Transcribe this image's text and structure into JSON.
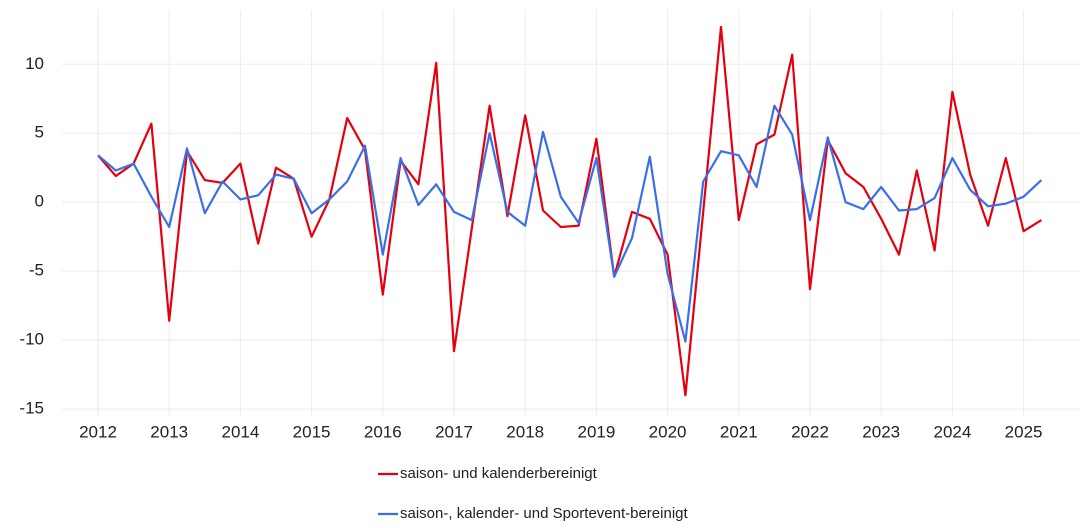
{
  "chart_data": {
    "type": "line",
    "categories": [
      "2012",
      null,
      null,
      null,
      "2013",
      null,
      null,
      null,
      "2014",
      null,
      null,
      null,
      "2015",
      null,
      null,
      null,
      "2016",
      null,
      null,
      null,
      "2017",
      null,
      null,
      null,
      "2018",
      null,
      null,
      null,
      "2019",
      null,
      null,
      null,
      "2020",
      null,
      null,
      null,
      "2021",
      null,
      null,
      null,
      "2022",
      null,
      null,
      null,
      "2023",
      null,
      null,
      null,
      "2024",
      null,
      null,
      null,
      "2025",
      null
    ],
    "series": [
      {
        "name": "saison- und kalenderbereinigt",
        "color": "#e3000f",
        "values": [
          3.4,
          1.9,
          2.8,
          5.7,
          -8.6,
          3.7,
          1.6,
          1.4,
          2.8,
          -3.0,
          2.5,
          1.7,
          -2.5,
          0.2,
          6.1,
          3.8,
          -6.7,
          3.0,
          1.3,
          10.1,
          -10.8,
          -1.9,
          7.0,
          -1.0,
          6.3,
          -0.6,
          -1.8,
          -1.7,
          4.6,
          -5.4,
          -0.7,
          -1.2,
          -3.8,
          -14.0,
          -0.7,
          12.7,
          -1.3,
          4.2,
          4.9,
          10.7,
          -6.3,
          4.5,
          2.1,
          1.1,
          -1.2,
          -3.8,
          2.3,
          -3.5,
          8.0,
          2.0,
          -1.7,
          3.2,
          -2.1,
          -1.3
        ]
      },
      {
        "name": "saison-, kalender- und Sportevent-bereinigt",
        "color": "#3b6fe8",
        "values": [
          3.4,
          2.3,
          2.8,
          0.4,
          -1.8,
          3.9,
          -0.8,
          1.5,
          0.2,
          0.5,
          2.0,
          1.7,
          -0.8,
          0.2,
          1.5,
          4.1,
          -3.8,
          3.2,
          -0.2,
          1.3,
          -0.7,
          -1.3,
          5.0,
          -0.7,
          -1.7,
          5.1,
          0.4,
          -1.5,
          3.2,
          -5.4,
          -2.6,
          3.3,
          -5.2,
          -10.1,
          1.5,
          3.7,
          3.4,
          1.1,
          7.0,
          4.9,
          -1.3,
          4.7,
          0.0,
          -0.5,
          1.1,
          -0.6,
          -0.5,
          0.3,
          3.2,
          0.9,
          -0.3,
          -0.1,
          0.4,
          1.6
        ]
      }
    ],
    "ylim": [
      -15.5,
      13.5
    ],
    "yticks": [
      -15,
      -10,
      -5,
      0,
      5,
      10
    ],
    "grid": true,
    "legend": "bottom"
  }
}
